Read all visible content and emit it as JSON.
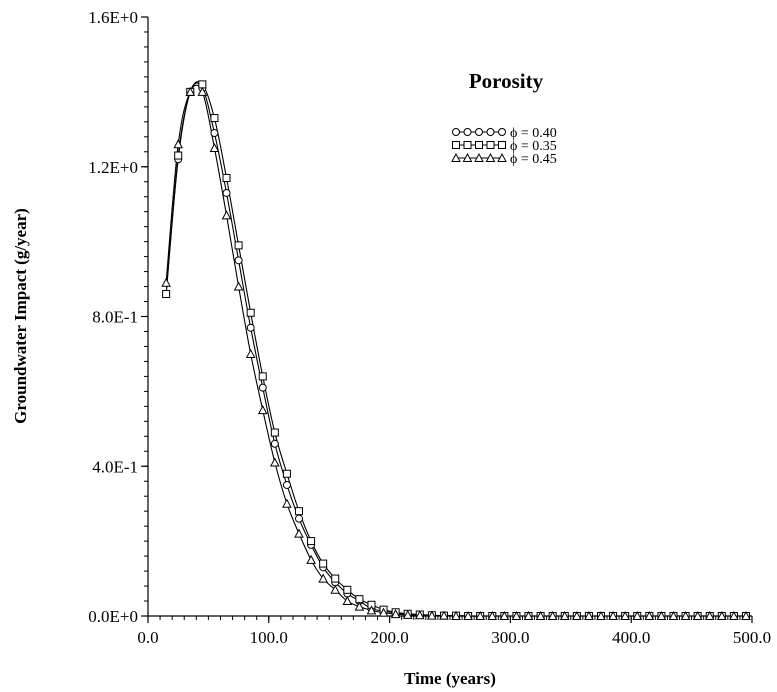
{
  "chart_data": {
    "type": "line",
    "title": "",
    "xlabel": "Time (years)",
    "ylabel": "Groundwater Impact (g/year)",
    "xlim": [
      0,
      500
    ],
    "ylim": [
      0,
      1.6
    ],
    "x_ticks": [
      0,
      100,
      200,
      300,
      400,
      500
    ],
    "x_tick_labels": [
      "0.0",
      "100.0",
      "200.0",
      "300.0",
      "400.0",
      "500.0"
    ],
    "y_ticks": [
      0,
      0.4,
      0.8,
      1.2,
      1.6
    ],
    "y_tick_labels": [
      "0.0E+0",
      "4.0E-1",
      "8.0E-1",
      "1.2E+0",
      "1.6E+0"
    ],
    "grid": false,
    "legend": {
      "title": "Porosity",
      "placement": "top-right",
      "entries": [
        {
          "label": "ϕ = 0.40",
          "marker": "circle"
        },
        {
          "label": "ϕ = 0.35",
          "marker": "square"
        },
        {
          "label": "ϕ = 0.45",
          "marker": "triangle"
        }
      ]
    },
    "x": [
      15,
      25,
      35,
      45,
      55,
      65,
      75,
      85,
      95,
      105,
      115,
      125,
      135,
      145,
      155,
      165,
      175,
      185,
      195,
      205,
      215,
      225,
      235,
      245,
      255,
      265,
      275,
      285,
      295,
      305,
      315,
      325,
      335,
      345,
      355,
      365,
      375,
      385,
      395,
      405,
      415,
      425,
      435,
      445,
      455,
      465,
      475,
      485,
      495
    ],
    "series": [
      {
        "name": "ϕ = 0.40",
        "marker": "circle",
        "values": [
          0.86,
          1.22,
          1.4,
          1.41,
          1.29,
          1.13,
          0.95,
          0.77,
          0.61,
          0.46,
          0.35,
          0.26,
          0.19,
          0.13,
          0.09,
          0.06,
          0.04,
          0.02,
          0.013,
          0.008,
          0.005,
          0.003,
          0.002,
          0.001,
          0.001,
          0,
          0,
          0,
          0,
          0,
          0,
          0,
          0,
          0,
          0,
          0,
          0,
          0,
          0,
          0,
          0,
          0,
          0,
          0,
          0,
          0,
          0,
          0,
          0
        ]
      },
      {
        "name": "ϕ = 0.35",
        "marker": "square",
        "values": [
          0.86,
          1.23,
          1.4,
          1.42,
          1.33,
          1.17,
          0.99,
          0.81,
          0.64,
          0.49,
          0.38,
          0.28,
          0.2,
          0.14,
          0.1,
          0.07,
          0.045,
          0.03,
          0.017,
          0.01,
          0.006,
          0.004,
          0.002,
          0.001,
          0.001,
          0,
          0,
          0,
          0,
          0,
          0,
          0,
          0,
          0,
          0,
          0,
          0,
          0,
          0,
          0,
          0,
          0,
          0,
          0,
          0,
          0,
          0,
          0,
          0
        ]
      },
      {
        "name": "ϕ = 0.45",
        "marker": "triangle",
        "values": [
          0.89,
          1.26,
          1.4,
          1.4,
          1.25,
          1.07,
          0.88,
          0.7,
          0.55,
          0.41,
          0.3,
          0.22,
          0.15,
          0.1,
          0.07,
          0.04,
          0.025,
          0.015,
          0.009,
          0.005,
          0.003,
          0.002,
          0.001,
          0.001,
          0,
          0,
          0,
          0,
          0,
          0,
          0,
          0,
          0,
          0,
          0,
          0,
          0,
          0,
          0,
          0,
          0,
          0,
          0,
          0,
          0,
          0,
          0,
          0,
          0
        ]
      }
    ]
  }
}
